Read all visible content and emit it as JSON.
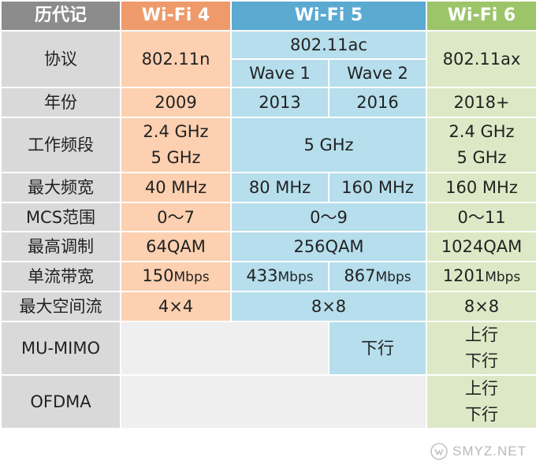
{
  "header": {
    "history": "历代记",
    "wifi4": "Wi-Fi 4",
    "wifi5": "Wi-Fi 5",
    "wifi6": "Wi-Fi 6"
  },
  "rows": {
    "protocol": {
      "label": "协议",
      "wifi4": "802.11n",
      "wifi5": "802.11ac",
      "wifi5_wave1": "Wave 1",
      "wifi5_wave2": "Wave 2",
      "wifi6": "802.11ax"
    },
    "year": {
      "label": "年份",
      "wifi4": "2009",
      "wifi5_wave1": "2013",
      "wifi5_wave2": "2016",
      "wifi6": "2018+"
    },
    "band": {
      "label": "工作频段",
      "wifi4_line1": "2.4 GHz",
      "wifi4_line2": "5 GHz",
      "wifi5": "5 GHz",
      "wifi6_line1": "2.4 GHz",
      "wifi6_line2": "5 GHz"
    },
    "bandwidth": {
      "label": "最大频宽",
      "wifi4": "40 MHz",
      "wifi5_wave1": "80 MHz",
      "wifi5_wave2": "160 MHz",
      "wifi6": "160 MHz"
    },
    "mcs": {
      "label": "MCS范围",
      "wifi4": "0～7",
      "wifi5": "0～9",
      "wifi6": "0～11"
    },
    "modulation": {
      "label": "最高调制",
      "wifi4": "64QAM",
      "wifi5": "256QAM",
      "wifi6": "1024QAM"
    },
    "stream_rate": {
      "label": "单流带宽",
      "wifi4_num": "150",
      "wifi4_unit": "Mbps",
      "wifi5_wave1_num": "433",
      "wifi5_wave1_unit": "Mbps",
      "wifi5_wave2_num": "867",
      "wifi5_wave2_unit": "Mbps",
      "wifi6_num": "1201",
      "wifi6_unit": "Mbps"
    },
    "spatial_streams": {
      "label": "最大空间流",
      "wifi4": "4×4",
      "wifi5": "8×8",
      "wifi6": "8×8"
    },
    "mu_mimo": {
      "label": "MU-MIMO",
      "wifi5_wave2": "下行",
      "wifi6_line1": "上行",
      "wifi6_line2": "下行"
    },
    "ofdma": {
      "label": "OFDMA",
      "wifi6_line1": "上行",
      "wifi6_line2": "下行"
    }
  },
  "watermark": {
    "text": "SMYZ.NET",
    "icon": "brand-logo-icon"
  },
  "colors": {
    "header_gray": "#8c8c8c",
    "header_orange": "#ef9a6a",
    "header_blue": "#5aaad2",
    "header_green": "#9cc56a",
    "wifi4_cell": "#fcd0b0",
    "wifi5_cell": "#b6deec",
    "wifi6_cell": "#dde9c6",
    "label_cell": "#d9d9d9"
  }
}
